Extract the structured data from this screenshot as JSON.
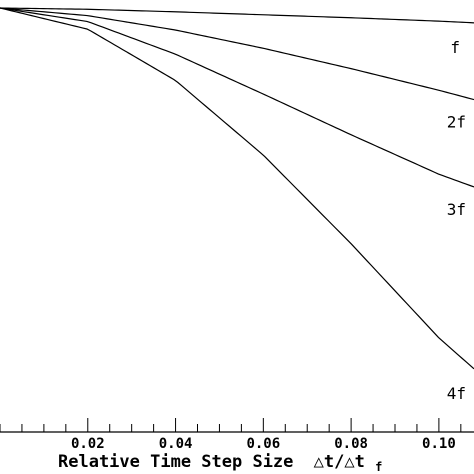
{
  "chart_data": {
    "type": "line",
    "title": "",
    "xlabel": "Relative Time Step Size",
    "xlabel_symbol": "△t/△t",
    "xlabel_subscript": "f",
    "ylabel": "",
    "xlim": [
      0,
      0.108
    ],
    "ylim": [
      0,
      1
    ],
    "grid": false,
    "legend": "none",
    "x_ticks": [
      0.02,
      0.04,
      0.06,
      0.08,
      0.1
    ],
    "x_tick_labels": [
      "0.02",
      "0.04",
      "0.06",
      "0.08",
      "0.10"
    ],
    "x_minor_step": 0.005,
    "series": [
      {
        "name": "f",
        "x": [
          0,
          0.02,
          0.04,
          0.06,
          0.08,
          0.1,
          0.108
        ],
        "y": [
          1.0,
          0.997,
          0.991,
          0.984,
          0.977,
          0.969,
          0.965
        ]
      },
      {
        "name": "2f",
        "x": [
          0,
          0.02,
          0.04,
          0.06,
          0.08,
          0.1,
          0.108
        ],
        "y": [
          1.0,
          0.982,
          0.948,
          0.905,
          0.857,
          0.806,
          0.784
        ]
      },
      {
        "name": "3f",
        "x": [
          0,
          0.02,
          0.04,
          0.06,
          0.08,
          0.1,
          0.108
        ],
        "y": [
          1.0,
          0.968,
          0.891,
          0.797,
          0.701,
          0.608,
          0.578
        ]
      },
      {
        "name": "4f",
        "x": [
          0,
          0.02,
          0.04,
          0.06,
          0.08,
          0.1,
          0.108
        ],
        "y": [
          1.0,
          0.95,
          0.829,
          0.653,
          0.444,
          0.222,
          0.149
        ]
      }
    ]
  }
}
